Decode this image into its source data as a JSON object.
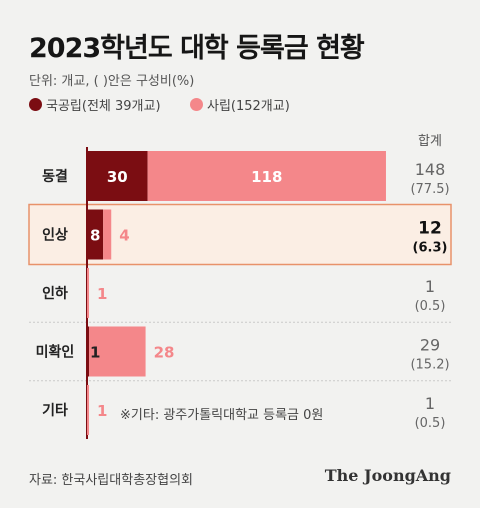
{
  "title": "2023학년도 대학 등록금 현황",
  "unit": "단위: 개교, ( )안은 구성비(%)",
  "legend": {
    "national": "국공립(전체 39개교)",
    "private": "사립(152개교)"
  },
  "total_header": "합계",
  "note": "※기타: 광주가톨릭대학교 등록금 0원",
  "source": "자료: 한국사립대학총장협의회",
  "brand": "The JoongAng",
  "colors": {
    "national": "#7b0d12",
    "private": "#f4878a",
    "highlight_border": "#e8926a",
    "highlight_fill": "#fbeee4"
  },
  "chart_data": {
    "type": "bar",
    "orientation": "horizontal",
    "stacked": true,
    "categories": [
      "동결",
      "인상",
      "인하",
      "미확인",
      "기타"
    ],
    "series": [
      {
        "name": "국공립(전체 39개교)",
        "values": [
          30,
          8,
          0,
          1,
          0
        ]
      },
      {
        "name": "사립(152개교)",
        "values": [
          118,
          4,
          1,
          28,
          1
        ]
      }
    ],
    "totals": [
      "148",
      "12",
      "1",
      "29",
      "1"
    ],
    "shares": [
      "(77.5)",
      "(6.3)",
      "(0.5)",
      "(15.2)",
      "(0.5)"
    ],
    "highlight_category": "인상",
    "xlim": [
      0,
      148
    ]
  }
}
